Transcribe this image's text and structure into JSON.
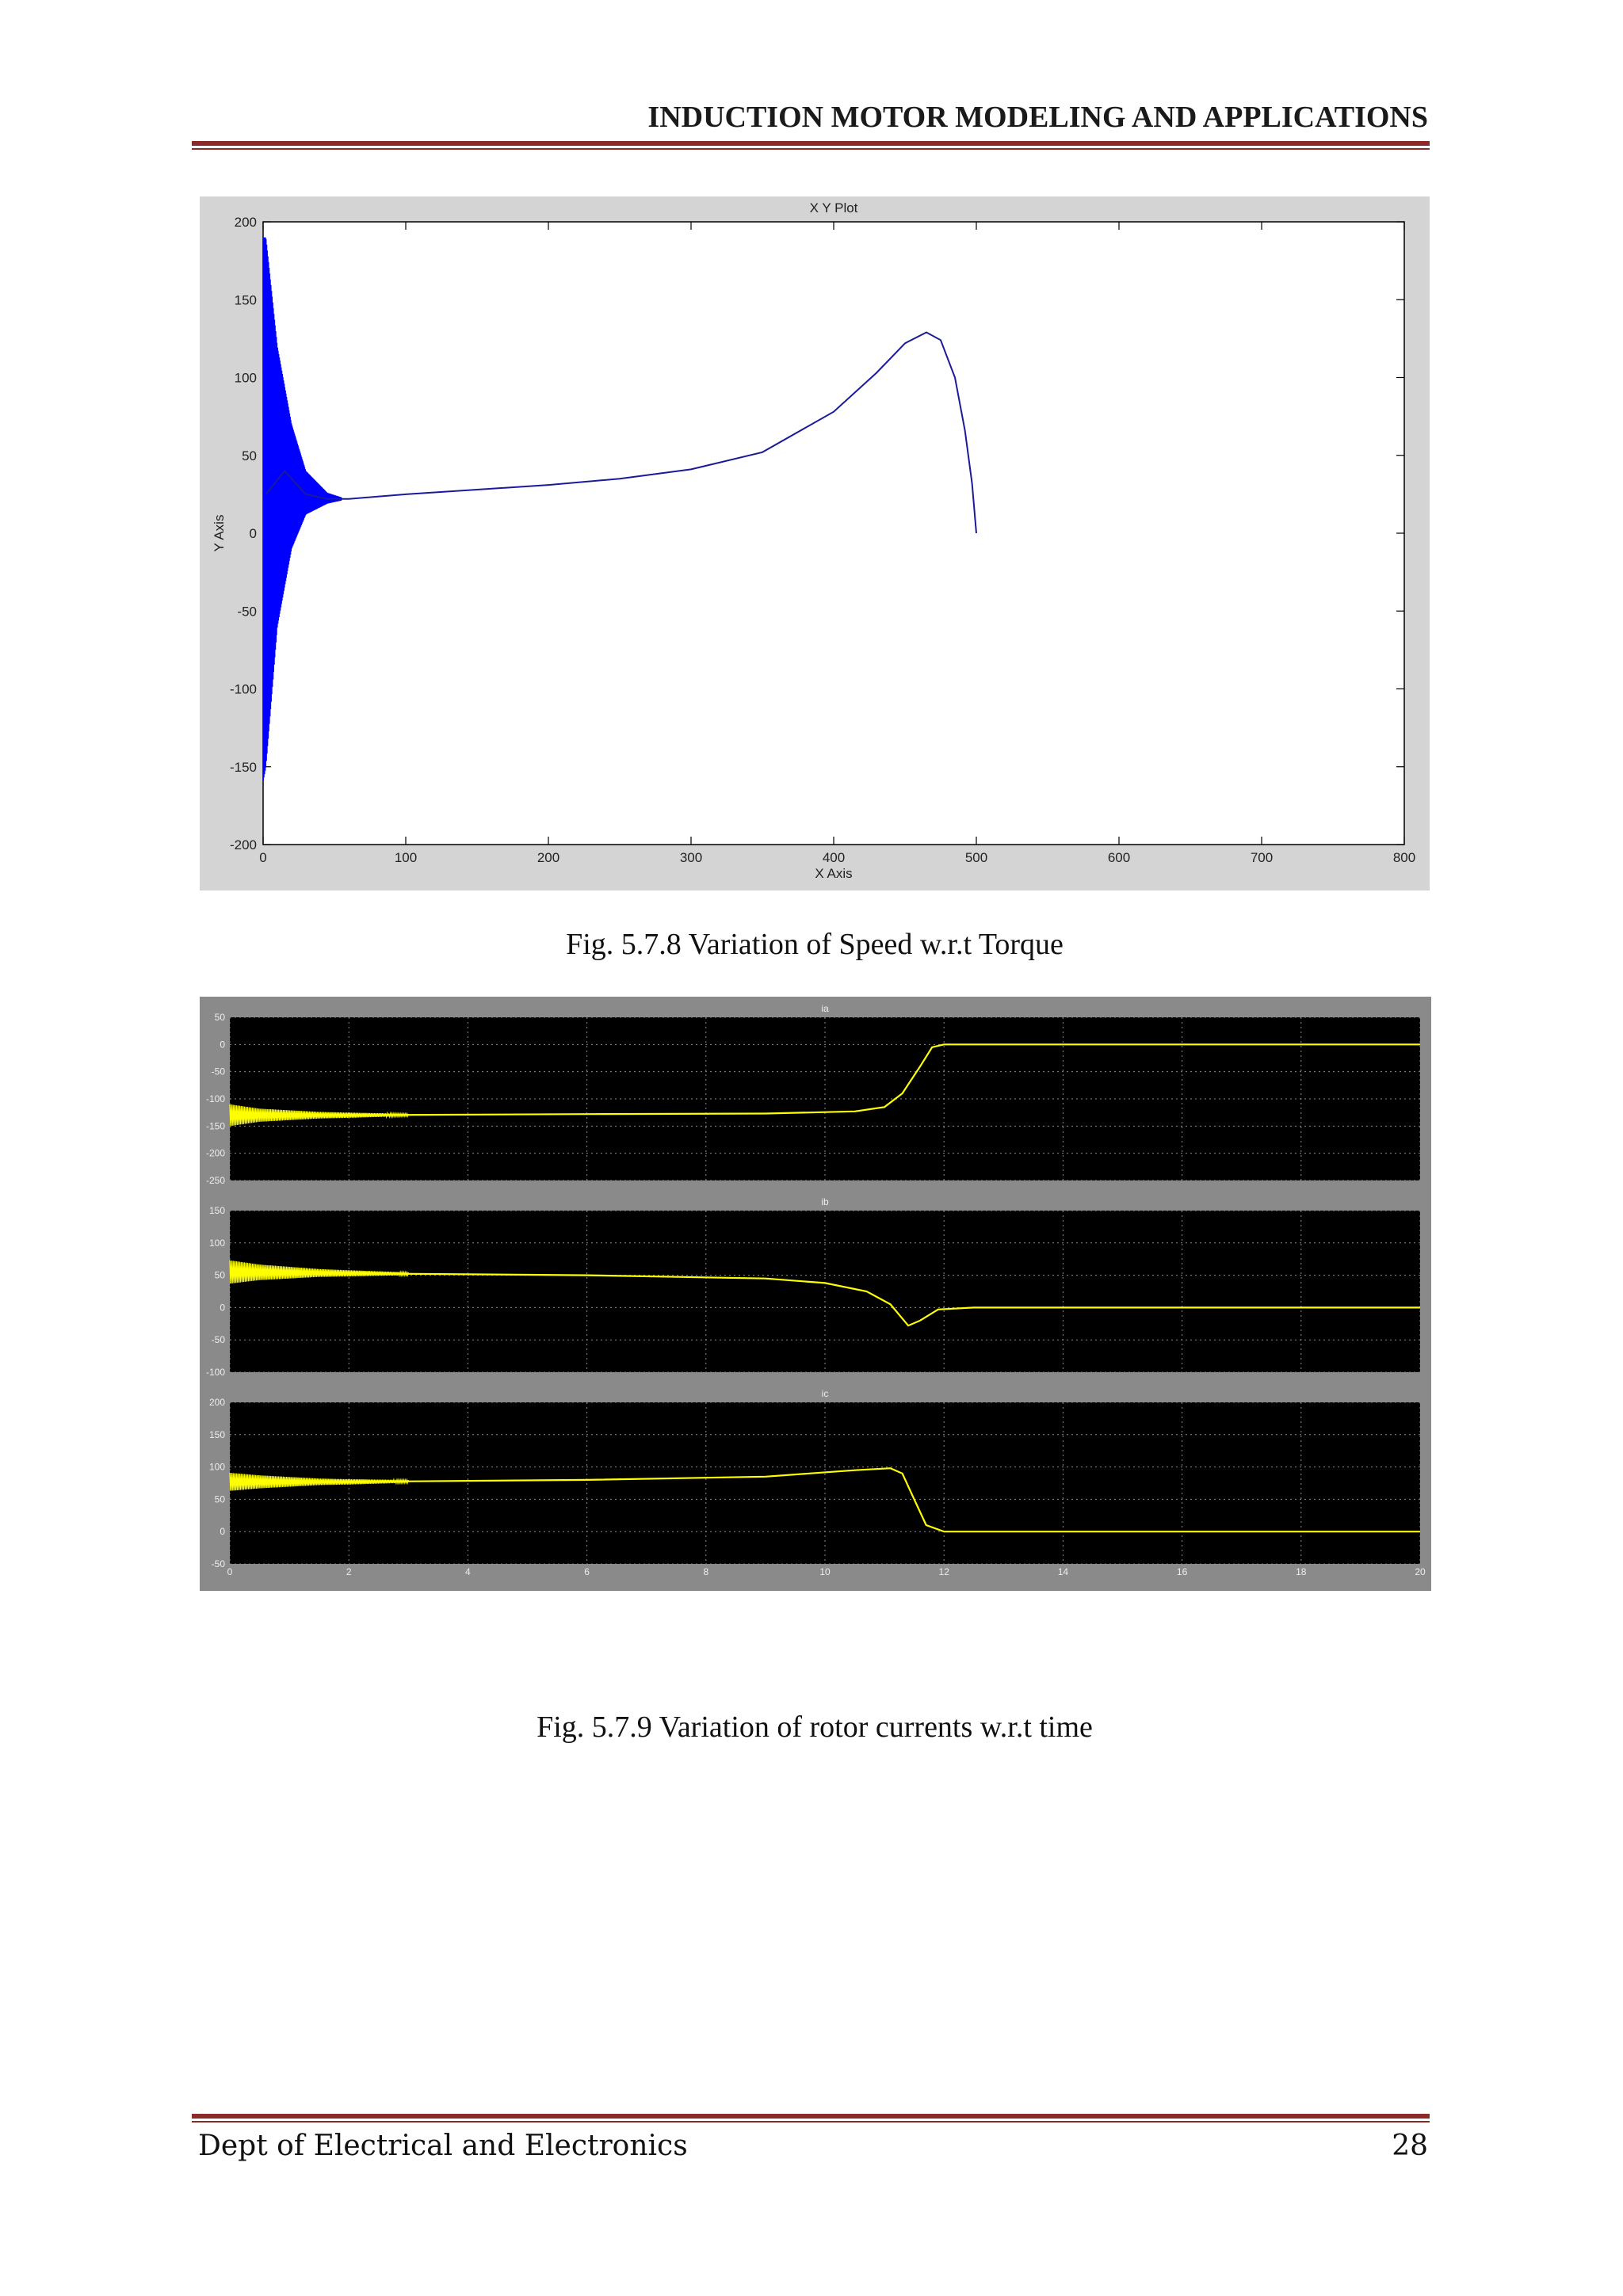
{
  "header": {
    "title": "INDUCTION MOTOR MODELING AND APPLICATIONS"
  },
  "figures": [
    {
      "caption": "Fig. 5.7.8 Variation of Speed w.r.t Torque"
    },
    {
      "caption": "Fig. 5.7.9 Variation of rotor currents w.r.t time"
    }
  ],
  "footer": {
    "dept": "Dept of Electrical and Electronics",
    "page_number": "28"
  },
  "colors": {
    "rule": "#8b2a2a",
    "xy_trace": "#0000ff",
    "scope_trace": "#ffff00",
    "scope_bg": "#000000"
  },
  "chart_data": [
    {
      "type": "line",
      "title": "X Y Plot",
      "xlabel": "X Axis",
      "ylabel": "Y Axis",
      "xlim": [
        0,
        800
      ],
      "ylim": [
        -200,
        200
      ],
      "xticks": [
        0,
        100,
        200,
        300,
        400,
        500,
        600,
        700,
        800
      ],
      "yticks": [
        -200,
        -150,
        -100,
        -50,
        0,
        50,
        100,
        150,
        200
      ],
      "grid": false,
      "series": [
        {
          "x": [
            2,
            15,
            30,
            45,
            60,
            100,
            150,
            200,
            250,
            300,
            350,
            400,
            430,
            450,
            465,
            475,
            485,
            492,
            497,
            500
          ],
          "y": [
            25,
            40,
            25,
            22,
            22,
            25,
            28,
            31,
            35,
            41,
            52,
            78,
            103,
            122,
            129,
            124,
            100,
            66,
            32,
            0
          ],
          "oscillation_envelope": {
            "x": [
              0,
              2,
              10,
              20,
              30,
              45,
              55
            ],
            "upper": [
              190,
              190,
              120,
              70,
              40,
              26,
              23
            ],
            "lower": [
              -160,
              -150,
              -60,
              -10,
              12,
              19,
              21
            ]
          }
        }
      ]
    },
    {
      "type": "line",
      "title": "ia",
      "xlim": [
        0,
        20
      ],
      "ylim": [
        -250,
        50
      ],
      "xticks": [
        0,
        2,
        4,
        6,
        8,
        10,
        12,
        14,
        16,
        18,
        20
      ],
      "yticks": [
        50,
        0,
        -50,
        -100,
        -150,
        -200,
        -250
      ],
      "grid": true,
      "series": [
        {
          "x": [
            0,
            2,
            6,
            9,
            10.5,
            11,
            11.3,
            11.6,
            11.8,
            12,
            20
          ],
          "y": [
            -130,
            -130,
            -128,
            -127,
            -123,
            -115,
            -90,
            -40,
            -5,
            0,
            0
          ],
          "oscillation_envelope": {
            "x": [
              0,
              0.5,
              1.5,
              3
            ],
            "halfwidth": [
              20,
              12,
              6,
              2
            ]
          }
        }
      ]
    },
    {
      "type": "line",
      "title": "ib",
      "xlim": [
        0,
        20
      ],
      "ylim": [
        -100,
        150
      ],
      "xticks": [
        0,
        2,
        4,
        6,
        8,
        10,
        12,
        14,
        16,
        18,
        20
      ],
      "yticks": [
        150,
        100,
        50,
        0,
        -50,
        -100
      ],
      "grid": true,
      "series": [
        {
          "x": [
            0,
            2,
            6,
            9,
            10,
            10.7,
            11.1,
            11.4,
            11.6,
            11.9,
            12.5,
            20
          ],
          "y": [
            55,
            53,
            50,
            45,
            38,
            25,
            5,
            -28,
            -20,
            -3,
            0,
            0
          ],
          "oscillation_envelope": {
            "x": [
              0,
              0.5,
              1.5,
              3
            ],
            "halfwidth": [
              18,
              12,
              6,
              2
            ]
          }
        }
      ]
    },
    {
      "type": "line",
      "title": "ic",
      "xlim": [
        0,
        20
      ],
      "ylim": [
        -50,
        200
      ],
      "xticks": [
        0,
        2,
        4,
        6,
        8,
        10,
        12,
        14,
        16,
        18,
        20
      ],
      "yticks": [
        200,
        150,
        100,
        50,
        0,
        -50
      ],
      "grid": true,
      "series": [
        {
          "x": [
            0,
            2,
            6,
            9,
            10.5,
            11.1,
            11.3,
            11.5,
            11.7,
            12,
            20
          ],
          "y": [
            77,
            77,
            80,
            85,
            95,
            98,
            90,
            50,
            10,
            0,
            0
          ],
          "oscillation_envelope": {
            "x": [
              0,
              0.5,
              1.5,
              3
            ],
            "halfwidth": [
              14,
              10,
              5,
              2
            ]
          }
        }
      ]
    }
  ]
}
